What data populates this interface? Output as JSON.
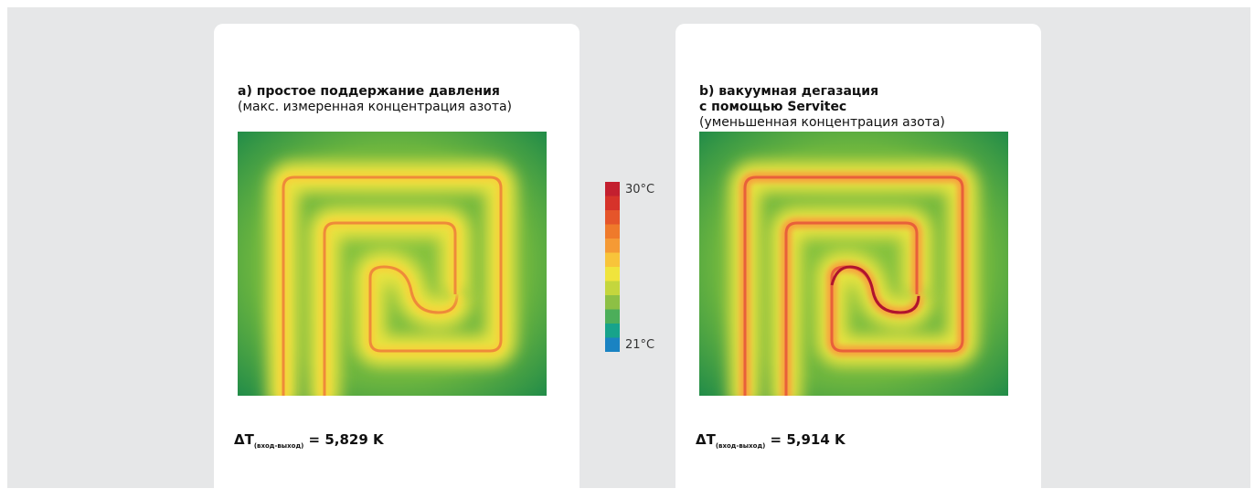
{
  "panels": [
    {
      "title": [
        "a) простое поддержание давления"
      ],
      "subtitle": "(макс. измеренная концентрация азота)",
      "delta_symbol": "ΔT",
      "delta_subscript": "(вход-выход)",
      "delta_value": "= 5,829 K"
    },
    {
      "title": [
        "b) вакуумная дегазация",
        "с помощью Servitec"
      ],
      "subtitle": "(уменьшенная концентрация азота)",
      "delta_symbol": "ΔT",
      "delta_subscript": "(вход-выход)",
      "delta_value": "= 5,914 K"
    }
  ],
  "legend": {
    "max_label": "30°C",
    "min_label": "21°C"
  }
}
